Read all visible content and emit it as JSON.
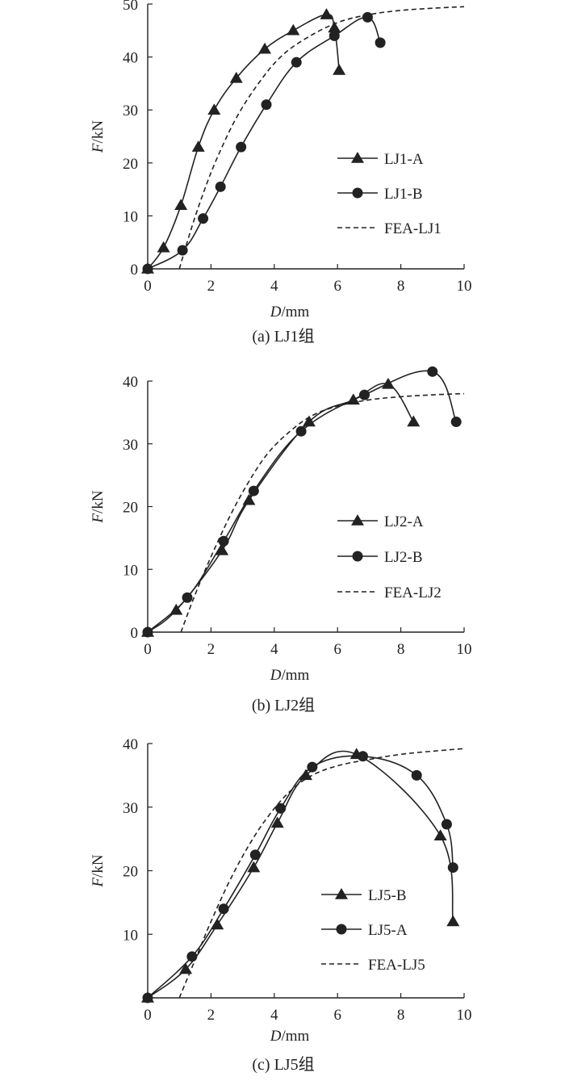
{
  "chart_data": [
    {
      "type": "line",
      "caption": "(a) LJ1组",
      "xlabel_var": "D",
      "xlabel_unit": "/mm",
      "ylabel_var": "F",
      "ylabel_unit": "/kN",
      "xlim": [
        0,
        10
      ],
      "ylim": [
        0,
        50
      ],
      "xticks": [
        0,
        2,
        4,
        6,
        8,
        10
      ],
      "yticks": [
        0,
        10,
        20,
        30,
        40,
        50
      ],
      "legend_position": "center-right",
      "series": [
        {
          "name": "LJ1-A",
          "style": "solid",
          "marker": "triangle",
          "x": [
            0,
            0.5,
            1.05,
            1.6,
            2.1,
            2.8,
            3.7,
            4.6,
            5.65,
            5.9,
            6.05
          ],
          "y": [
            0,
            4,
            12,
            23,
            30,
            36,
            41.5,
            45,
            48,
            45.5,
            37.5
          ]
        },
        {
          "name": "LJ1-B",
          "style": "solid",
          "marker": "circle",
          "x": [
            0,
            1.1,
            1.75,
            2.3,
            2.95,
            3.75,
            4.7,
            5.9,
            6.95,
            7.35
          ],
          "y": [
            0,
            3.5,
            9.5,
            15.5,
            23,
            31,
            39,
            44,
            47.5,
            42.7
          ]
        },
        {
          "name": "FEA-LJ1",
          "style": "dashed",
          "marker": "none",
          "x": [
            1.0,
            1.4,
            1.8,
            2.2,
            2.8,
            3.5,
            4.2,
            5.0,
            6.0,
            7.0,
            8.0,
            9.0,
            10.0
          ],
          "y": [
            0,
            8,
            15,
            21,
            28.5,
            35,
            40,
            43.5,
            46.5,
            48,
            48.8,
            49.2,
            49.5
          ]
        }
      ]
    },
    {
      "type": "line",
      "caption": "(b) LJ2组",
      "xlabel_var": "D",
      "xlabel_unit": "/mm",
      "ylabel_var": "F",
      "ylabel_unit": "/kN",
      "xlim": [
        0,
        10
      ],
      "ylim": [
        0,
        40
      ],
      "xticks": [
        0,
        2,
        4,
        6,
        8,
        10
      ],
      "yticks": [
        0,
        10,
        20,
        30,
        40
      ],
      "legend_position": "center-right",
      "series": [
        {
          "name": "LJ2-A",
          "style": "solid",
          "marker": "triangle",
          "x": [
            0,
            0.9,
            2.35,
            3.2,
            5.1,
            6.5,
            7.6,
            8.4
          ],
          "y": [
            0,
            3.5,
            13,
            21,
            33.5,
            37,
            39.5,
            33.5
          ]
        },
        {
          "name": "LJ2-B",
          "style": "solid",
          "marker": "circle",
          "x": [
            0,
            1.25,
            2.4,
            3.35,
            4.85,
            6.85,
            9.0,
            9.75
          ],
          "y": [
            0,
            5.5,
            14.5,
            22.5,
            32,
            37.8,
            41.5,
            33.5
          ]
        },
        {
          "name": "FEA-LJ2",
          "style": "dashed",
          "marker": "none",
          "x": [
            1.05,
            1.5,
            2.0,
            2.6,
            3.2,
            3.8,
            4.5,
            5.2,
            6.0,
            7.0,
            8.0,
            9.0,
            10.0
          ],
          "y": [
            0,
            6,
            12,
            18.5,
            24,
            28.5,
            32,
            34.5,
            36,
            37,
            37.5,
            37.8,
            38
          ]
        }
      ]
    },
    {
      "type": "line",
      "caption": "(c) LJ5组",
      "xlabel_var": "D",
      "xlabel_unit": "/mm",
      "ylabel_var": "F",
      "ylabel_unit": "/kN",
      "xlim": [
        0,
        10
      ],
      "ylim": [
        0,
        40
      ],
      "xticks": [
        0,
        2,
        4,
        6,
        8,
        10
      ],
      "yticks": [
        10,
        20,
        30,
        40
      ],
      "legend_position": "center-right",
      "series": [
        {
          "name": "LJ5-B",
          "style": "solid",
          "marker": "triangle",
          "x": [
            0,
            1.2,
            2.2,
            3.35,
            4.1,
            5.0,
            6.6,
            9.25,
            9.65
          ],
          "y": [
            0,
            4.5,
            11.5,
            20.5,
            27.5,
            35,
            38.3,
            25.5,
            12
          ]
        },
        {
          "name": "LJ5-A",
          "style": "solid",
          "marker": "circle",
          "x": [
            0,
            1.4,
            2.4,
            3.4,
            4.2,
            5.2,
            6.8,
            8.5,
            9.45,
            9.65
          ],
          "y": [
            0,
            6.5,
            14,
            22.5,
            29.8,
            36.3,
            38,
            35,
            27.3,
            20.5
          ]
        },
        {
          "name": "FEA-LJ5",
          "style": "dashed",
          "marker": "none",
          "x": [
            1.0,
            1.5,
            2.0,
            2.6,
            3.2,
            3.8,
            4.5,
            5.2,
            6.0,
            7.0,
            8.0,
            9.0,
            10.0
          ],
          "y": [
            0,
            6,
            12,
            18.5,
            24,
            28.5,
            32.5,
            35,
            36.5,
            37.5,
            38.3,
            38.8,
            39.2
          ]
        }
      ]
    }
  ]
}
